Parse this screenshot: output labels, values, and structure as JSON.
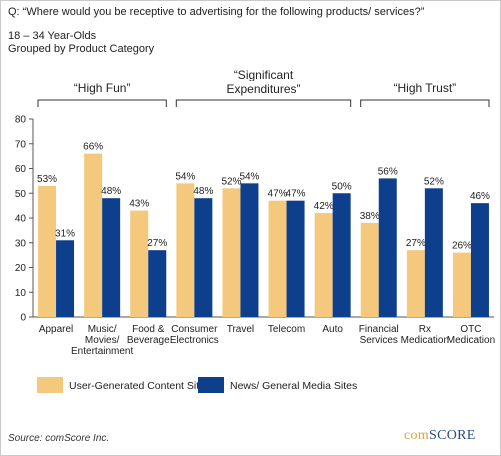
{
  "question": "Q: “Where would you be receptive to advertising for the following products/ services?”",
  "subtitle_lines": [
    "18 – 34 Year-Olds",
    "Grouped by Product Category"
  ],
  "group_labels": [
    {
      "lines": [
        "“High Fun”"
      ]
    },
    {
      "lines": [
        "“Significant",
        "Expenditures”"
      ]
    },
    {
      "lines": [
        "“High Trust”"
      ]
    }
  ],
  "chart_data": {
    "type": "bar",
    "categories": [
      [
        "Apparel"
      ],
      [
        "Music/",
        "Movies/",
        "Entertainment"
      ],
      [
        "Food &",
        "Beverage"
      ],
      [
        "Consumer",
        "Electronics"
      ],
      [
        "Travel"
      ],
      [
        "Telecom"
      ],
      [
        "Auto"
      ],
      [
        "Financial",
        "Services"
      ],
      [
        "Rx",
        "Medication"
      ],
      [
        "OTC",
        "Medication"
      ]
    ],
    "series": [
      {
        "name": "User-Generated Content Sites",
        "color": "#f4c97d",
        "values": [
          53,
          66,
          43,
          54,
          52,
          47,
          42,
          38,
          27,
          26
        ],
        "labels": [
          "53%",
          "66%",
          "43%",
          "54%",
          "52%",
          "47%",
          "42%",
          "38%",
          "27%",
          "26%"
        ]
      },
      {
        "name": "News/ General Media Sites",
        "color": "#0d3f8c",
        "values": [
          31,
          48,
          27,
          48,
          54,
          47,
          50,
          56,
          52,
          46
        ],
        "labels": [
          "31%",
          "48%",
          "27%",
          "48%",
          "54%",
          "47%",
          "50%",
          "56%",
          "52%",
          "46%"
        ]
      }
    ],
    "ylim": [
      0,
      80
    ],
    "yticks": [
      "0",
      "10",
      "20",
      "30",
      "40",
      "50",
      "60",
      "70",
      "80"
    ],
    "grid": false,
    "legend": "bottom"
  },
  "source": "Source: comScore Inc.",
  "logo": {
    "part1": "com",
    "part2": "SCORE"
  }
}
